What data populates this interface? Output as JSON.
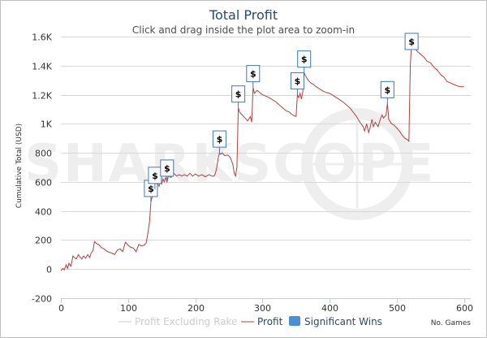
{
  "chart_data": {
    "type": "line",
    "title": "Total Profit",
    "subtitle": "Click and drag inside the plot area to zoom-in",
    "ylabel": "Cumulative Total (USD)",
    "xlabel": "No. Games",
    "xlim": [
      0,
      610
    ],
    "ylim": [
      -200,
      1600
    ],
    "x_ticks": [
      0,
      100,
      200,
      300,
      400,
      500,
      600
    ],
    "y_ticks": [
      -200,
      0,
      200,
      400,
      600,
      800,
      1000,
      1200,
      1400,
      1600
    ],
    "y_tick_labels": [
      "-200",
      "0",
      "200",
      "400",
      "600",
      "800",
      "1K",
      "1.2K",
      "1.4K",
      "1.6K"
    ],
    "grid": true,
    "legend_position": "bottom-right",
    "watermark": "SHARKSCOPE",
    "series": [
      {
        "name": "Profit Excluding Rake",
        "color": "#cccccc",
        "visible": false,
        "points": []
      },
      {
        "name": "Profit",
        "color": "#b0413e",
        "points": [
          [
            0,
            -10
          ],
          [
            3,
            5
          ],
          [
            5,
            -5
          ],
          [
            8,
            30
          ],
          [
            10,
            5
          ],
          [
            12,
            40
          ],
          [
            15,
            20
          ],
          [
            18,
            90
          ],
          [
            20,
            80
          ],
          [
            23,
            70
          ],
          [
            26,
            100
          ],
          [
            28,
            85
          ],
          [
            31,
            70
          ],
          [
            34,
            90
          ],
          [
            37,
            75
          ],
          [
            40,
            100
          ],
          [
            43,
            80
          ],
          [
            45,
            110
          ],
          [
            48,
            130
          ],
          [
            50,
            190
          ],
          [
            53,
            175
          ],
          [
            56,
            170
          ],
          [
            60,
            150
          ],
          [
            64,
            140
          ],
          [
            68,
            125
          ],
          [
            72,
            115
          ],
          [
            76,
            110
          ],
          [
            80,
            100
          ],
          [
            84,
            130
          ],
          [
            88,
            140
          ],
          [
            92,
            120
          ],
          [
            96,
            185
          ],
          [
            100,
            165
          ],
          [
            104,
            150
          ],
          [
            108,
            145
          ],
          [
            112,
            120
          ],
          [
            116,
            170
          ],
          [
            120,
            160
          ],
          [
            124,
            165
          ],
          [
            127,
            180
          ],
          [
            130,
            260
          ],
          [
            132,
            330
          ],
          [
            134,
            460
          ],
          [
            136,
            500
          ],
          [
            138,
            530
          ],
          [
            140,
            550
          ],
          [
            142,
            555
          ],
          [
            144,
            590
          ],
          [
            146,
            570
          ],
          [
            148,
            600
          ],
          [
            150,
            585
          ],
          [
            152,
            620
          ],
          [
            154,
            600
          ],
          [
            156,
            630
          ],
          [
            158,
            600
          ],
          [
            160,
            640
          ],
          [
            164,
            630
          ],
          [
            168,
            660
          ],
          [
            172,
            640
          ],
          [
            176,
            650
          ],
          [
            180,
            640
          ],
          [
            184,
            650
          ],
          [
            188,
            640
          ],
          [
            192,
            660
          ],
          [
            196,
            640
          ],
          [
            200,
            655
          ],
          [
            205,
            640
          ],
          [
            210,
            650
          ],
          [
            215,
            635
          ],
          [
            220,
            650
          ],
          [
            225,
            640
          ],
          [
            228,
            640
          ],
          [
            230,
            660
          ],
          [
            232,
            700
          ],
          [
            234,
            760
          ],
          [
            236,
            800
          ],
          [
            238,
            790
          ],
          [
            240,
            800
          ],
          [
            244,
            780
          ],
          [
            248,
            785
          ],
          [
            252,
            770
          ],
          [
            256,
            720
          ],
          [
            258,
            660
          ],
          [
            260,
            640
          ],
          [
            262,
            700
          ],
          [
            264,
            1110
          ],
          [
            266,
            1080
          ],
          [
            270,
            1060
          ],
          [
            274,
            1040
          ],
          [
            278,
            1020
          ],
          [
            282,
            1050
          ],
          [
            284,
            1010
          ],
          [
            286,
            1250
          ],
          [
            288,
            1210
          ],
          [
            292,
            1230
          ],
          [
            296,
            1215
          ],
          [
            300,
            1200
          ],
          [
            305,
            1190
          ],
          [
            310,
            1180
          ],
          [
            315,
            1165
          ],
          [
            320,
            1150
          ],
          [
            325,
            1130
          ],
          [
            330,
            1110
          ],
          [
            335,
            1090
          ],
          [
            340,
            1080
          ],
          [
            345,
            1060
          ],
          [
            350,
            1050
          ],
          [
            352,
            1200
          ],
          [
            354,
            1180
          ],
          [
            356,
            1210
          ],
          [
            358,
            1170
          ],
          [
            360,
            1220
          ],
          [
            362,
            1350
          ],
          [
            364,
            1330
          ],
          [
            368,
            1300
          ],
          [
            372,
            1280
          ],
          [
            376,
            1270
          ],
          [
            380,
            1255
          ],
          [
            385,
            1240
          ],
          [
            390,
            1225
          ],
          [
            395,
            1215
          ],
          [
            400,
            1210
          ],
          [
            405,
            1195
          ],
          [
            410,
            1180
          ],
          [
            415,
            1165
          ],
          [
            420,
            1150
          ],
          [
            425,
            1130
          ],
          [
            430,
            1110
          ],
          [
            435,
            1080
          ],
          [
            440,
            1050
          ],
          [
            445,
            1010
          ],
          [
            450,
            980
          ],
          [
            452,
            950
          ],
          [
            455,
            1000
          ],
          [
            458,
            940
          ],
          [
            460,
            970
          ],
          [
            463,
            1030
          ],
          [
            465,
            980
          ],
          [
            468,
            1010
          ],
          [
            472,
            980
          ],
          [
            476,
            1040
          ],
          [
            478,
            1060
          ],
          [
            480,
            1040
          ],
          [
            484,
            1060
          ],
          [
            486,
            1140
          ],
          [
            488,
            1030
          ],
          [
            492,
            1000
          ],
          [
            496,
            990
          ],
          [
            500,
            970
          ],
          [
            504,
            950
          ],
          [
            508,
            920
          ],
          [
            512,
            900
          ],
          [
            516,
            890
          ],
          [
            518,
            880
          ],
          [
            520,
            1400
          ],
          [
            522,
            1550
          ],
          [
            525,
            1530
          ],
          [
            530,
            1500
          ],
          [
            535,
            1480
          ],
          [
            540,
            1460
          ],
          [
            545,
            1430
          ],
          [
            550,
            1420
          ],
          [
            555,
            1390
          ],
          [
            560,
            1370
          ],
          [
            565,
            1340
          ],
          [
            570,
            1320
          ],
          [
            575,
            1290
          ],
          [
            580,
            1280
          ],
          [
            585,
            1270
          ],
          [
            590,
            1260
          ],
          [
            595,
            1255
          ],
          [
            600,
            1255
          ]
        ]
      }
    ],
    "significant_wins": {
      "name": "Significant Wins",
      "color": "#4a90d9",
      "label": "$",
      "points": [
        [
          134,
          460
        ],
        [
          140,
          550
        ],
        [
          158,
          600
        ],
        [
          236,
          800
        ],
        [
          264,
          1110
        ],
        [
          286,
          1250
        ],
        [
          352,
          1200
        ],
        [
          362,
          1350
        ],
        [
          486,
          1140
        ],
        [
          522,
          1550
        ]
      ]
    }
  }
}
